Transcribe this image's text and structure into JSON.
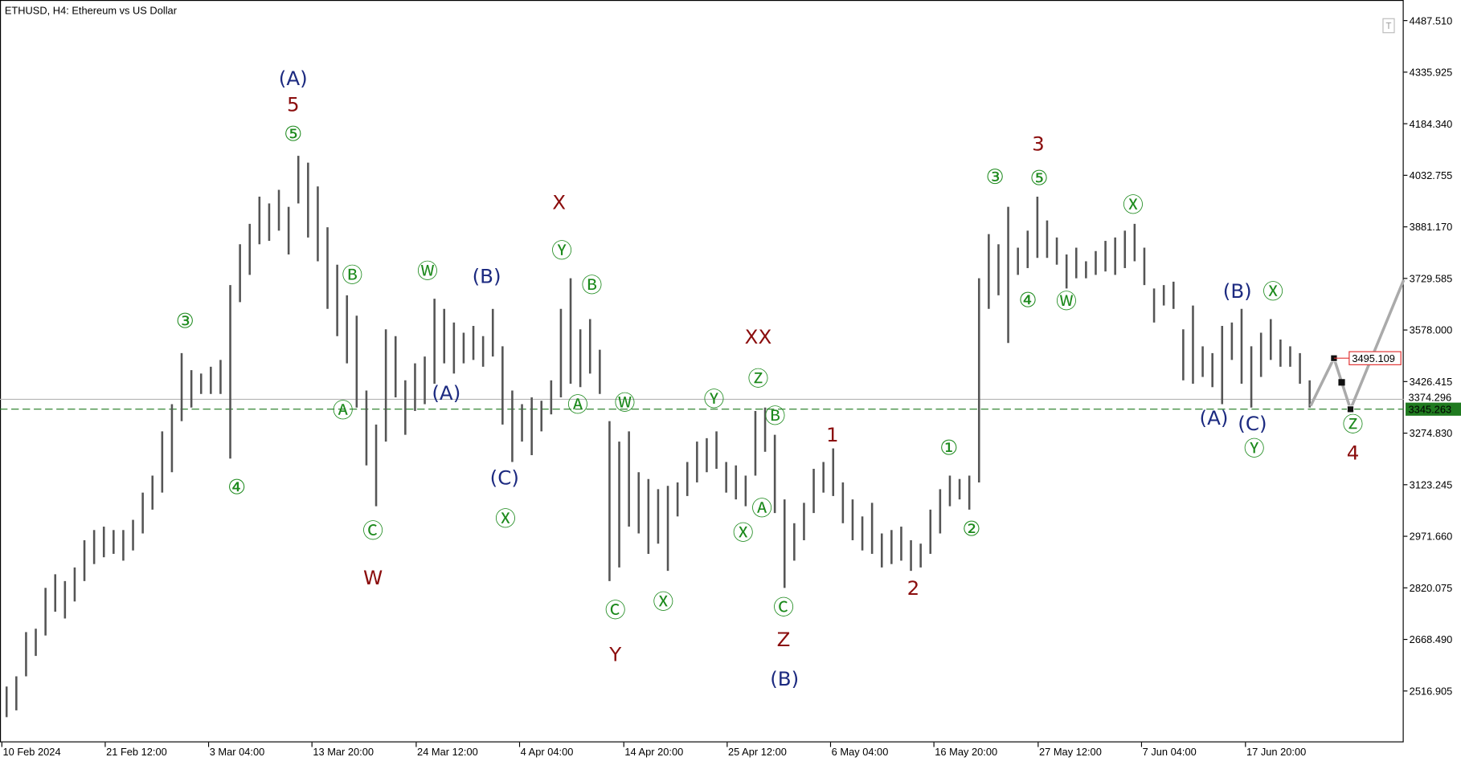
{
  "chart_data": {
    "type": "ohlc",
    "title": "ETHUSD, H4:  Ethereum vs US Dollar",
    "color": "#555555",
    "x": [
      0,
      1,
      2,
      3,
      4,
      5,
      6,
      7,
      8,
      9,
      10,
      11,
      12,
      13,
      14,
      15,
      16,
      17,
      18,
      19,
      20,
      21,
      22,
      23,
      24,
      25,
      26,
      27,
      28,
      29,
      30,
      31,
      32,
      33,
      34,
      35,
      36,
      37,
      38,
      39,
      40,
      41,
      42,
      43,
      44,
      45,
      46,
      47,
      48,
      49,
      50,
      51,
      52,
      53,
      54,
      55,
      56,
      57,
      58,
      59,
      60,
      61,
      62,
      63,
      64,
      65,
      66,
      67,
      68,
      69,
      70,
      71,
      72,
      73,
      74,
      75,
      76,
      77,
      78,
      79,
      80,
      81,
      82,
      83,
      84,
      85,
      86,
      87,
      88,
      89,
      90,
      91,
      92,
      93,
      94,
      95,
      96,
      97,
      98,
      99,
      100,
      101,
      102,
      103,
      104,
      105,
      106,
      107,
      108,
      109,
      110,
      111,
      112,
      113,
      114,
      115,
      116,
      117,
      118,
      119,
      120,
      121,
      122,
      123,
      124,
      125,
      126,
      127,
      128,
      129,
      130,
      131,
      132,
      133,
      134
    ],
    "high": [
      2530,
      2560,
      2690,
      2700,
      2820,
      2860,
      2840,
      2880,
      2960,
      2990,
      3000,
      2990,
      2990,
      3020,
      3100,
      3150,
      3280,
      3360,
      3510,
      3460,
      3450,
      3470,
      3490,
      3710,
      3830,
      3890,
      3970,
      3950,
      3990,
      3940,
      4090,
      4070,
      4000,
      3880,
      3770,
      3680,
      3620,
      3400,
      3300,
      3580,
      3560,
      3430,
      3480,
      3500,
      3670,
      3640,
      3600,
      3570,
      3590,
      3560,
      3640,
      3530,
      3400,
      3360,
      3380,
      3370,
      3430,
      3640,
      3730,
      3580,
      3610,
      3520,
      3310,
      3250,
      3280,
      3160,
      3140,
      3110,
      3120,
      3130,
      3190,
      3250,
      3260,
      3280,
      3190,
      3180,
      3150,
      3340,
      3350,
      3270,
      3080,
      3010,
      3070,
      3170,
      3190,
      3230,
      3130,
      3080,
      3030,
      3070,
      2980,
      2990,
      3000,
      2960,
      2950,
      3050,
      3110,
      3150,
      3140,
      3150,
      3730,
      3860,
      3830,
      3940,
      3820,
      3870,
      3970,
      3900,
      3850,
      3800,
      3820,
      3780,
      3810,
      3840,
      3850,
      3870,
      3890,
      3820,
      3700,
      3710,
      3720,
      3580,
      3650,
      3530,
      3510,
      3590,
      3600,
      3640,
      3530,
      3570,
      3610,
      3550,
      3530,
      3510,
      3430
    ],
    "low": [
      2440,
      2460,
      2560,
      2620,
      2680,
      2750,
      2730,
      2780,
      2840,
      2890,
      2910,
      2920,
      2900,
      2930,
      2980,
      3050,
      3100,
      3160,
      3310,
      3350,
      3390,
      3390,
      3390,
      3200,
      3660,
      3740,
      3830,
      3840,
      3870,
      3800,
      3950,
      3850,
      3780,
      3640,
      3560,
      3480,
      3350,
      3180,
      3060,
      3250,
      3380,
      3270,
      3340,
      3360,
      3420,
      3480,
      3450,
      3480,
      3490,
      3470,
      3500,
      3300,
      3190,
      3250,
      3210,
      3280,
      3330,
      3380,
      3420,
      3410,
      3450,
      3390,
      2840,
      2880,
      3000,
      2980,
      2920,
      2950,
      2870,
      3030,
      3090,
      3130,
      3160,
      3170,
      3100,
      3080,
      3060,
      3150,
      3220,
      3040,
      2820,
      2900,
      2960,
      3040,
      3100,
      3090,
      3010,
      2960,
      2930,
      2920,
      2880,
      2890,
      2900,
      2870,
      2880,
      2920,
      2980,
      3060,
      3080,
      3050,
      3130,
      3640,
      3680,
      3540,
      3740,
      3760,
      3790,
      3790,
      3770,
      3700,
      3730,
      3730,
      3740,
      3750,
      3740,
      3760,
      3780,
      3710,
      3600,
      3650,
      3640,
      3430,
      3420,
      3440,
      3410,
      3360,
      3490,
      3420,
      3350,
      3440,
      3490,
      3470,
      3470,
      3420,
      3350
    ],
    "xlim": [
      -0.68,
      143.67
    ],
    "ylim": [
      2366,
      4548
    ],
    "xticks": [
      {
        "value": -0.49,
        "label": "10 Feb 2024"
      },
      {
        "value": 10.14,
        "label": "21 Feb 12:00"
      },
      {
        "value": 20.77,
        "label": "3 Mar 04:00"
      },
      {
        "value": 31.4,
        "label": "13 Mar 20:00"
      },
      {
        "value": 42.12,
        "label": "24 Mar 12:00"
      },
      {
        "value": 52.75,
        "label": "4 Apr 04:00"
      },
      {
        "value": 63.47,
        "label": "14 Apr 20:00"
      },
      {
        "value": 74.1,
        "label": "25 Apr 12:00"
      },
      {
        "value": 84.73,
        "label": "6 May 04:00"
      },
      {
        "value": 95.36,
        "label": "16 May 20:00"
      },
      {
        "value": 106.08,
        "label": "27 May 12:00"
      },
      {
        "value": 116.71,
        "label": "7 Jun 04:00"
      },
      {
        "value": 127.4,
        "label": "17 Jun 20:00"
      }
    ],
    "yticks": [
      {
        "value": 4487.51,
        "label": "4487.510"
      },
      4335.925,
      {
        "value": 4184.34,
        "label": "4184.340"
      },
      4032.755,
      {
        "value": 3881.17,
        "label": "3881.170"
      },
      3729.585,
      {
        "value": 3578,
        "label": "3578.000"
      },
      3426.415,
      {
        "value": 3274.83,
        "label": "3274.830"
      },
      3123.245,
      {
        "value": 2971.66,
        "label": "2971.660"
      },
      2820.075,
      {
        "value": 2668.49,
        "label": "2668.490"
      },
      2516.905
    ],
    "lines": [
      {
        "value": 3374.296,
        "color": "#b4b4b4",
        "style": "solid"
      },
      {
        "value": 3345.263,
        "color": "#1f7a1f",
        "style": "dashed"
      }
    ],
    "forecast": {
      "x": [
        134.1,
        136.5,
        138.2,
        143.67
      ],
      "values": [
        3355,
        3495.109,
        3345,
        3725
      ],
      "color": "#aaaaaa"
    },
    "annotations": [
      {
        "text": "(A)",
        "color": "#1c2a80"
      },
      {
        "text": "5",
        "color": "#8b0d0d"
      },
      {
        "text": "⑤",
        "color": "#1d8a1d"
      },
      {
        "text": "③",
        "color": "#1d8a1d"
      },
      {
        "text": "④",
        "color": "#1d8a1d"
      },
      {
        "text": "Ⓑ",
        "color": "#1d8a1d"
      },
      {
        "text": "Ⓐ",
        "color": "#1d8a1d"
      },
      {
        "text": "Ⓒ",
        "color": "#1d8a1d"
      },
      {
        "text": "W",
        "color": "#8b0d0d"
      },
      {
        "text": "Ⓦ",
        "color": "#1d8a1d"
      },
      {
        "text": "(A)",
        "color": "#1c2a80"
      },
      {
        "text": "(B)",
        "color": "#1c2a80"
      },
      {
        "text": "(C)",
        "color": "#1c2a80"
      },
      {
        "text": "Ⓧ",
        "color": "#1d8a1d"
      },
      {
        "text": "X",
        "color": "#8b0d0d"
      },
      {
        "text": "Ⓨ",
        "color": "#1d8a1d"
      },
      {
        "text": "Ⓑ",
        "color": "#1d8a1d"
      },
      {
        "text": "Ⓐ",
        "color": "#1d8a1d"
      },
      {
        "text": "Ⓦ",
        "color": "#1d8a1d"
      },
      {
        "text": "Ⓒ",
        "color": "#1d8a1d"
      },
      {
        "text": "Y",
        "color": "#8b0d0d"
      },
      {
        "text": "Ⓧ",
        "color": "#1d8a1d"
      },
      {
        "text": "Ⓨ",
        "color": "#1d8a1d"
      },
      {
        "text": "XX",
        "color": "#8b0d0d"
      },
      {
        "text": "Ⓩ",
        "color": "#1d8a1d"
      },
      {
        "text": "Ⓑ",
        "color": "#1d8a1d"
      },
      {
        "text": "Ⓐ",
        "color": "#1d8a1d"
      },
      {
        "text": "Ⓧ",
        "color": "#1d8a1d"
      },
      {
        "text": "Ⓒ",
        "color": "#1d8a1d"
      },
      {
        "text": "Z",
        "color": "#8b0d0d"
      },
      {
        "text": "(B)",
        "color": "#1c2a80"
      },
      {
        "text": "1",
        "color": "#8b0d0d"
      },
      {
        "text": "2",
        "color": "#8b0d0d"
      },
      {
        "text": "①",
        "color": "#1d8a1d"
      },
      {
        "text": "②",
        "color": "#1d8a1d"
      },
      {
        "text": "③",
        "color": "#1d8a1d"
      },
      {
        "text": "⑤",
        "color": "#1d8a1d"
      },
      {
        "text": "3",
        "color": "#8b0d0d"
      },
      {
        "text": "④",
        "color": "#1d8a1d"
      },
      {
        "text": "Ⓦ",
        "color": "#1d8a1d"
      },
      {
        "text": "Ⓧ",
        "color": "#1d8a1d"
      },
      {
        "text": "(B)",
        "color": "#1c2a80"
      },
      {
        "text": "Ⓧ",
        "color": "#1d8a1d"
      },
      {
        "text": "(A)",
        "color": "#1c2a80"
      },
      {
        "text": "(C)",
        "color": "#1c2a80"
      },
      {
        "text": "Ⓨ",
        "color": "#1d8a1d"
      },
      {
        "text": "Ⓩ",
        "color": "#1d8a1d"
      },
      {
        "text": "4",
        "color": "#8b0d0d"
      }
    ]
  }
}
